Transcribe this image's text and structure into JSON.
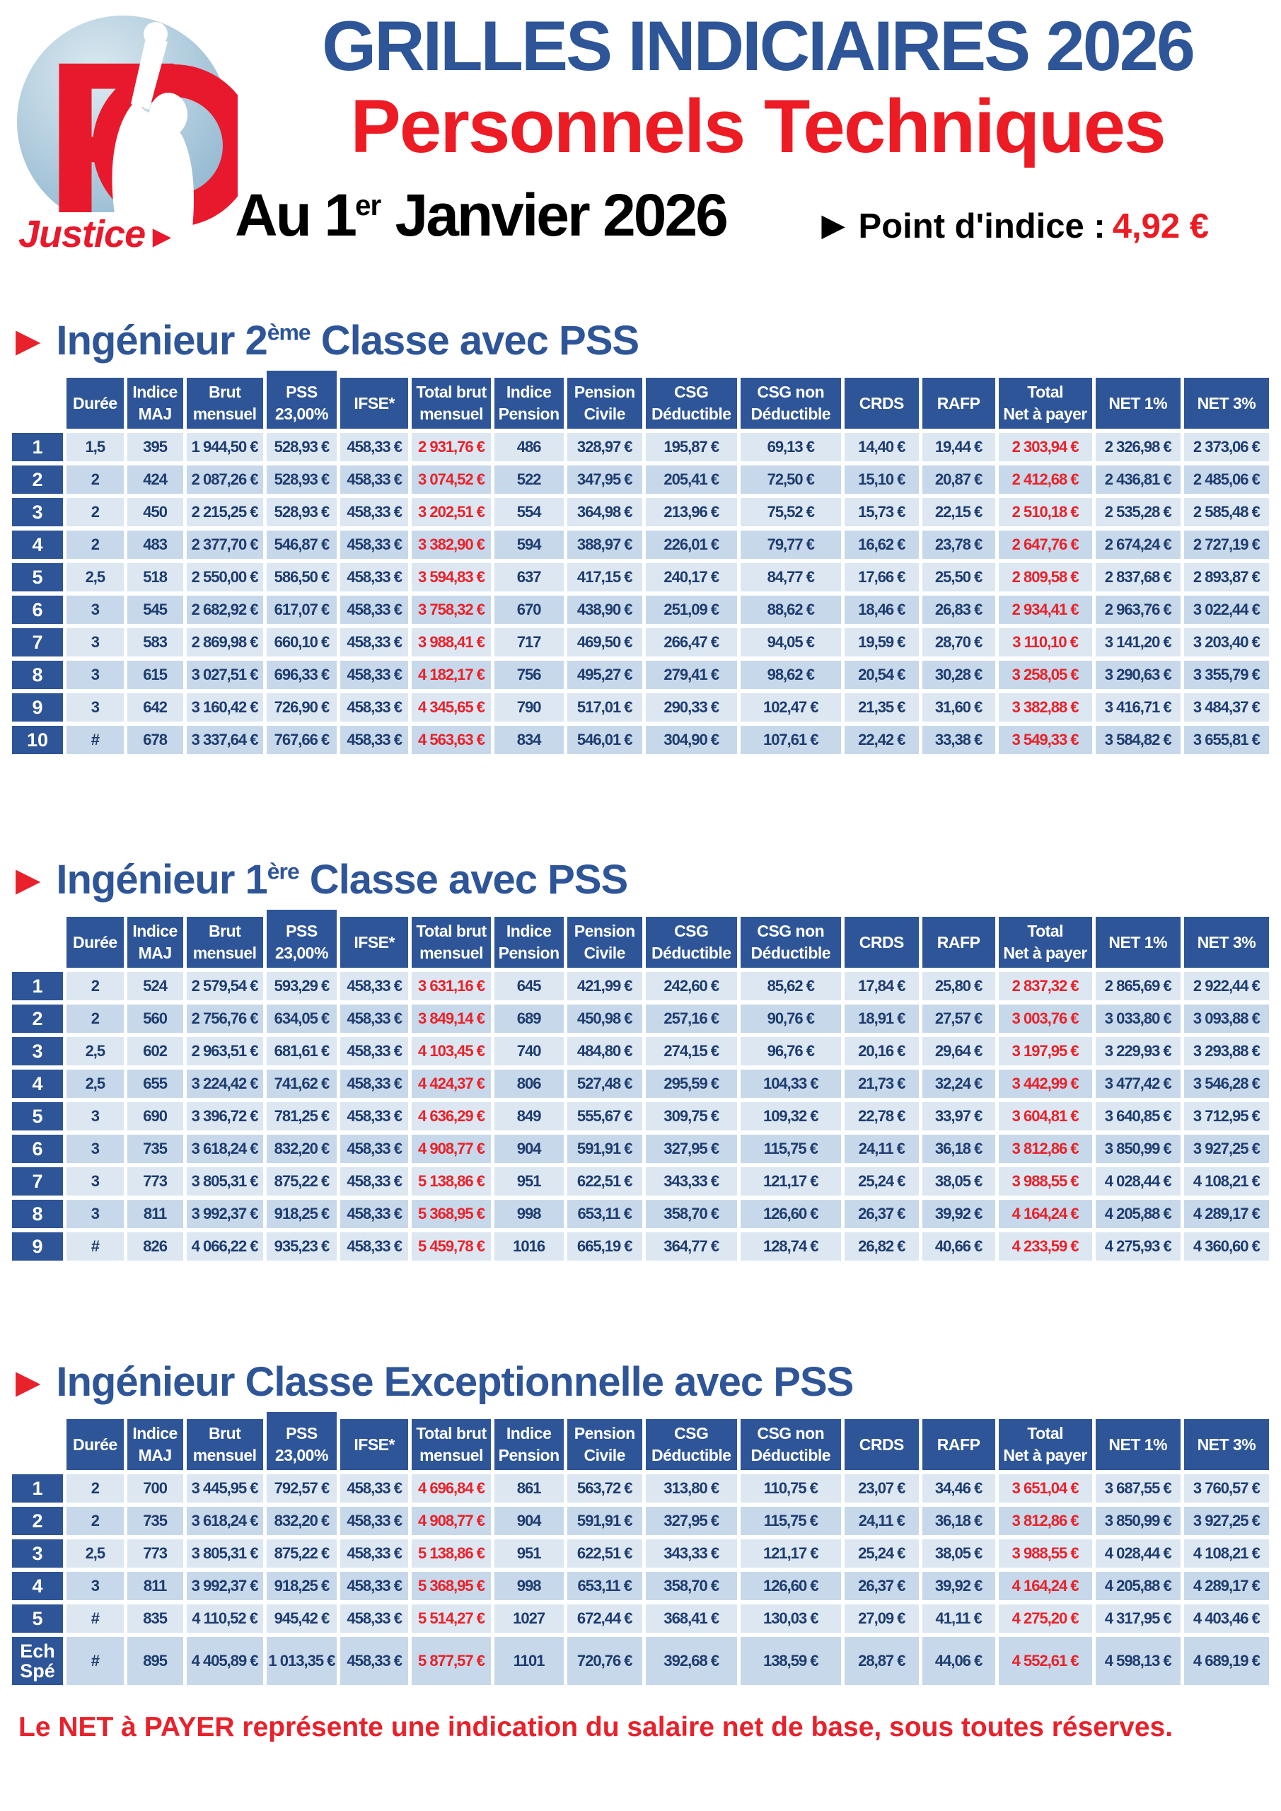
{
  "logo": {
    "fo": "F",
    "justice": "Justice",
    "arrow": "►"
  },
  "header": {
    "title_line1": "GRILLES INDICIAIRES 2026",
    "title_line2": "Personnels Techniques",
    "date": {
      "pre": "Au 1",
      "sup": "er",
      "post": " Janvier 2026"
    },
    "arrow": "▶",
    "point_indice_label": "Point d'indice :",
    "point_indice_value": "4,92 €"
  },
  "colors": {
    "header_blue": "#2e5597",
    "title_red": "#ec1b24",
    "value_red": "#e8222a",
    "value_navy": "#1e3c6e",
    "row_light": "#dce7f2",
    "row_dark": "#c7d8ea"
  },
  "columns": [
    {
      "l1": "Durée",
      "l2": ""
    },
    {
      "l1": "Indice",
      "l2": "MAJ"
    },
    {
      "l1": "Brut",
      "l2": "mensuel"
    },
    {
      "l1": "PSS",
      "l2": "23,00%"
    },
    {
      "l1": "IFSE*",
      "l2": ""
    },
    {
      "l1": "Total brut",
      "l2": "mensuel"
    },
    {
      "l1": "Indice",
      "l2": "Pension"
    },
    {
      "l1": "Pension",
      "l2": "Civile"
    },
    {
      "l1": "CSG",
      "l2": "Déductible"
    },
    {
      "l1": "CSG non",
      "l2": "Déductible"
    },
    {
      "l1": "CRDS",
      "l2": ""
    },
    {
      "l1": "RAFP",
      "l2": ""
    },
    {
      "l1": "Total",
      "l2": "Net à payer"
    },
    {
      "l1": "NET 1%",
      "l2": ""
    },
    {
      "l1": "NET 3%",
      "l2": ""
    }
  ],
  "tables": [
    {
      "title": {
        "pre": "Ingénieur 2",
        "sup": "ème",
        "post": " Classe avec PSS"
      },
      "rows": [
        {
          "ech": "1",
          "cells": [
            "1,5",
            "395",
            "1 944,50 €",
            "528,93 €",
            "458,33 €",
            "2 931,76 €",
            "486",
            "328,97 €",
            "195,87 €",
            "69,13 €",
            "14,40 €",
            "19,44 €",
            "2 303,94 €",
            "2 326,98 €",
            "2 373,06 €"
          ]
        },
        {
          "ech": "2",
          "cells": [
            "2",
            "424",
            "2 087,26 €",
            "528,93 €",
            "458,33 €",
            "3 074,52 €",
            "522",
            "347,95 €",
            "205,41 €",
            "72,50 €",
            "15,10 €",
            "20,87 €",
            "2 412,68 €",
            "2 436,81 €",
            "2 485,06 €"
          ]
        },
        {
          "ech": "3",
          "cells": [
            "2",
            "450",
            "2 215,25 €",
            "528,93 €",
            "458,33 €",
            "3 202,51 €",
            "554",
            "364,98 €",
            "213,96 €",
            "75,52 €",
            "15,73 €",
            "22,15 €",
            "2 510,18 €",
            "2 535,28 €",
            "2 585,48 €"
          ]
        },
        {
          "ech": "4",
          "cells": [
            "2",
            "483",
            "2 377,70 €",
            "546,87 €",
            "458,33 €",
            "3 382,90 €",
            "594",
            "388,97 €",
            "226,01 €",
            "79,77 €",
            "16,62 €",
            "23,78 €",
            "2 647,76 €",
            "2 674,24 €",
            "2 727,19 €"
          ]
        },
        {
          "ech": "5",
          "cells": [
            "2,5",
            "518",
            "2 550,00 €",
            "586,50 €",
            "458,33 €",
            "3 594,83 €",
            "637",
            "417,15 €",
            "240,17 €",
            "84,77 €",
            "17,66 €",
            "25,50 €",
            "2 809,58 €",
            "2 837,68 €",
            "2 893,87 €"
          ]
        },
        {
          "ech": "6",
          "cells": [
            "3",
            "545",
            "2 682,92 €",
            "617,07 €",
            "458,33 €",
            "3 758,32 €",
            "670",
            "438,90 €",
            "251,09 €",
            "88,62 €",
            "18,46 €",
            "26,83 €",
            "2 934,41 €",
            "2 963,76 €",
            "3 022,44 €"
          ]
        },
        {
          "ech": "7",
          "cells": [
            "3",
            "583",
            "2 869,98 €",
            "660,10 €",
            "458,33 €",
            "3 988,41 €",
            "717",
            "469,50 €",
            "266,47 €",
            "94,05 €",
            "19,59 €",
            "28,70 €",
            "3 110,10 €",
            "3 141,20 €",
            "3 203,40 €"
          ]
        },
        {
          "ech": "8",
          "cells": [
            "3",
            "615",
            "3 027,51 €",
            "696,33 €",
            "458,33 €",
            "4 182,17 €",
            "756",
            "495,27 €",
            "279,41 €",
            "98,62 €",
            "20,54 €",
            "30,28 €",
            "3 258,05 €",
            "3 290,63 €",
            "3 355,79 €"
          ]
        },
        {
          "ech": "9",
          "cells": [
            "3",
            "642",
            "3 160,42 €",
            "726,90 €",
            "458,33 €",
            "4 345,65 €",
            "790",
            "517,01 €",
            "290,33 €",
            "102,47 €",
            "21,35 €",
            "31,60 €",
            "3 382,88 €",
            "3 416,71 €",
            "3 484,37 €"
          ]
        },
        {
          "ech": "10",
          "cells": [
            "#",
            "678",
            "3 337,64 €",
            "767,66 €",
            "458,33 €",
            "4 563,63 €",
            "834",
            "546,01 €",
            "304,90 €",
            "107,61 €",
            "22,42 €",
            "33,38 €",
            "3 549,33 €",
            "3 584,82 €",
            "3 655,81 €"
          ]
        }
      ]
    },
    {
      "title": {
        "pre": "Ingénieur 1",
        "sup": "ère",
        "post": " Classe avec PSS"
      },
      "rows": [
        {
          "ech": "1",
          "cells": [
            "2",
            "524",
            "2 579,54 €",
            "593,29 €",
            "458,33 €",
            "3 631,16 €",
            "645",
            "421,99 €",
            "242,60 €",
            "85,62 €",
            "17,84 €",
            "25,80 €",
            "2 837,32 €",
            "2 865,69 €",
            "2 922,44 €"
          ]
        },
        {
          "ech": "2",
          "cells": [
            "2",
            "560",
            "2 756,76 €",
            "634,05 €",
            "458,33 €",
            "3 849,14 €",
            "689",
            "450,98 €",
            "257,16 €",
            "90,76 €",
            "18,91 €",
            "27,57 €",
            "3 003,76 €",
            "3 033,80 €",
            "3 093,88 €"
          ]
        },
        {
          "ech": "3",
          "cells": [
            "2,5",
            "602",
            "2 963,51 €",
            "681,61 €",
            "458,33 €",
            "4 103,45 €",
            "740",
            "484,80 €",
            "274,15 €",
            "96,76 €",
            "20,16 €",
            "29,64 €",
            "3 197,95 €",
            "3 229,93 €",
            "3 293,88 €"
          ]
        },
        {
          "ech": "4",
          "cells": [
            "2,5",
            "655",
            "3 224,42 €",
            "741,62 €",
            "458,33 €",
            "4 424,37 €",
            "806",
            "527,48 €",
            "295,59 €",
            "104,33 €",
            "21,73 €",
            "32,24 €",
            "3 442,99 €",
            "3 477,42 €",
            "3 546,28 €"
          ]
        },
        {
          "ech": "5",
          "cells": [
            "3",
            "690",
            "3 396,72 €",
            "781,25 €",
            "458,33 €",
            "4 636,29 €",
            "849",
            "555,67 €",
            "309,75 €",
            "109,32 €",
            "22,78 €",
            "33,97 €",
            "3 604,81 €",
            "3 640,85 €",
            "3 712,95 €"
          ]
        },
        {
          "ech": "6",
          "cells": [
            "3",
            "735",
            "3 618,24 €",
            "832,20 €",
            "458,33 €",
            "4 908,77 €",
            "904",
            "591,91 €",
            "327,95 €",
            "115,75 €",
            "24,11 €",
            "36,18 €",
            "3 812,86 €",
            "3 850,99 €",
            "3 927,25 €"
          ]
        },
        {
          "ech": "7",
          "cells": [
            "3",
            "773",
            "3 805,31 €",
            "875,22 €",
            "458,33 €",
            "5 138,86 €",
            "951",
            "622,51 €",
            "343,33 €",
            "121,17 €",
            "25,24 €",
            "38,05 €",
            "3 988,55 €",
            "4 028,44 €",
            "4 108,21 €"
          ]
        },
        {
          "ech": "8",
          "cells": [
            "3",
            "811",
            "3 992,37 €",
            "918,25 €",
            "458,33 €",
            "5 368,95 €",
            "998",
            "653,11 €",
            "358,70 €",
            "126,60 €",
            "26,37 €",
            "39,92 €",
            "4 164,24 €",
            "4 205,88 €",
            "4 289,17 €"
          ]
        },
        {
          "ech": "9",
          "cells": [
            "#",
            "826",
            "4 066,22 €",
            "935,23 €",
            "458,33 €",
            "5 459,78 €",
            "1016",
            "665,19 €",
            "364,77 €",
            "128,74 €",
            "26,82 €",
            "40,66 €",
            "4 233,59 €",
            "4 275,93 €",
            "4 360,60 €"
          ]
        }
      ]
    },
    {
      "title": {
        "pre": "Ingénieur Classe Exceptionnelle avec PSS",
        "sup": "",
        "post": ""
      },
      "rows": [
        {
          "ech": "1",
          "cells": [
            "2",
            "700",
            "3 445,95 €",
            "792,57 €",
            "458,33 €",
            "4 696,84 €",
            "861",
            "563,72 €",
            "313,80 €",
            "110,75 €",
            "23,07 €",
            "34,46 €",
            "3 651,04 €",
            "3 687,55 €",
            "3 760,57 €"
          ]
        },
        {
          "ech": "2",
          "cells": [
            "2",
            "735",
            "3 618,24 €",
            "832,20 €",
            "458,33 €",
            "4 908,77 €",
            "904",
            "591,91 €",
            "327,95 €",
            "115,75 €",
            "24,11 €",
            "36,18 €",
            "3 812,86 €",
            "3 850,99 €",
            "3 927,25 €"
          ]
        },
        {
          "ech": "3",
          "cells": [
            "2,5",
            "773",
            "3 805,31 €",
            "875,22 €",
            "458,33 €",
            "5 138,86 €",
            "951",
            "622,51 €",
            "343,33 €",
            "121,17 €",
            "25,24 €",
            "38,05 €",
            "3 988,55 €",
            "4 028,44 €",
            "4 108,21 €"
          ]
        },
        {
          "ech": "4",
          "cells": [
            "3",
            "811",
            "3 992,37 €",
            "918,25 €",
            "458,33 €",
            "5 368,95 €",
            "998",
            "653,11 €",
            "358,70 €",
            "126,60 €",
            "26,37 €",
            "39,92 €",
            "4 164,24 €",
            "4 205,88 €",
            "4 289,17 €"
          ]
        },
        {
          "ech": "5",
          "cells": [
            "#",
            "835",
            "4 110,52 €",
            "945,42 €",
            "458,33 €",
            "5 514,27 €",
            "1027",
            "672,44 €",
            "368,41 €",
            "130,03 €",
            "27,09 €",
            "41,11 €",
            "4 275,20 €",
            "4 317,95 €",
            "4 403,46 €"
          ]
        },
        {
          "ech": "Ech\nSpé",
          "tall": true,
          "cells": [
            "#",
            "895",
            "4 405,89 €",
            "1 013,35 €",
            "458,33 €",
            "5 877,57 €",
            "1101",
            "720,76 €",
            "392,68 €",
            "138,59 €",
            "28,87 €",
            "44,06 €",
            "4 552,61 €",
            "4 598,13 €",
            "4 689,19 €"
          ]
        }
      ]
    }
  ],
  "footer": "Le NET à PAYER représente une indication du salaire net de base, sous toutes réserves."
}
